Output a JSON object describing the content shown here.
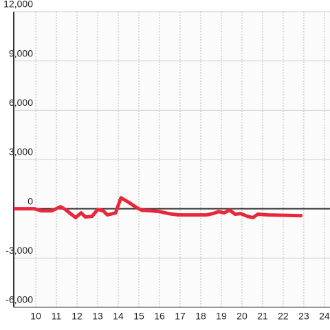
{
  "chart_data": {
    "type": "line",
    "x": [
      8.93,
      9.93,
      10.27,
      10.77,
      11.2,
      11.43,
      11.93,
      12.2,
      12.4,
      12.73,
      13.0,
      13.27,
      13.47,
      13.87,
      14.13,
      14.47,
      14.87,
      15.13,
      15.6,
      16.0,
      16.43,
      16.93,
      18.27,
      18.6,
      18.87,
      19.13,
      19.4,
      19.67,
      19.93,
      20.27,
      20.53,
      20.77,
      21.27,
      22.93
    ],
    "series": [
      {
        "color": "#e8283a",
        "values": [
          0,
          0,
          -125,
          -125,
          125,
          -40,
          -540,
          -250,
          -500,
          -460,
          -40,
          -125,
          -375,
          -250,
          670,
          420,
          85,
          -85,
          -125,
          -170,
          -290,
          -375,
          -375,
          -290,
          -170,
          -250,
          -85,
          -330,
          -290,
          -460,
          -540,
          -330,
          -375,
          -420
        ]
      }
    ],
    "xlim": [
      8.93,
      24.27
    ],
    "xticks": [
      10,
      11,
      12,
      13,
      14,
      15,
      16,
      17,
      18,
      19,
      20,
      21,
      22,
      23,
      24
    ],
    "ylim": [
      -6000,
      12000
    ],
    "yticks": [
      {
        "value": -6000,
        "label": "-6,000"
      },
      {
        "value": -3000,
        "label": "-3,000"
      },
      0,
      {
        "value": 3000,
        "label": "3,000"
      },
      {
        "value": 6000,
        "label": "6,000"
      },
      {
        "value": 9000,
        "label": "9,000"
      },
      {
        "value": 12000,
        "label": "12,000"
      }
    ],
    "grid": true
  }
}
